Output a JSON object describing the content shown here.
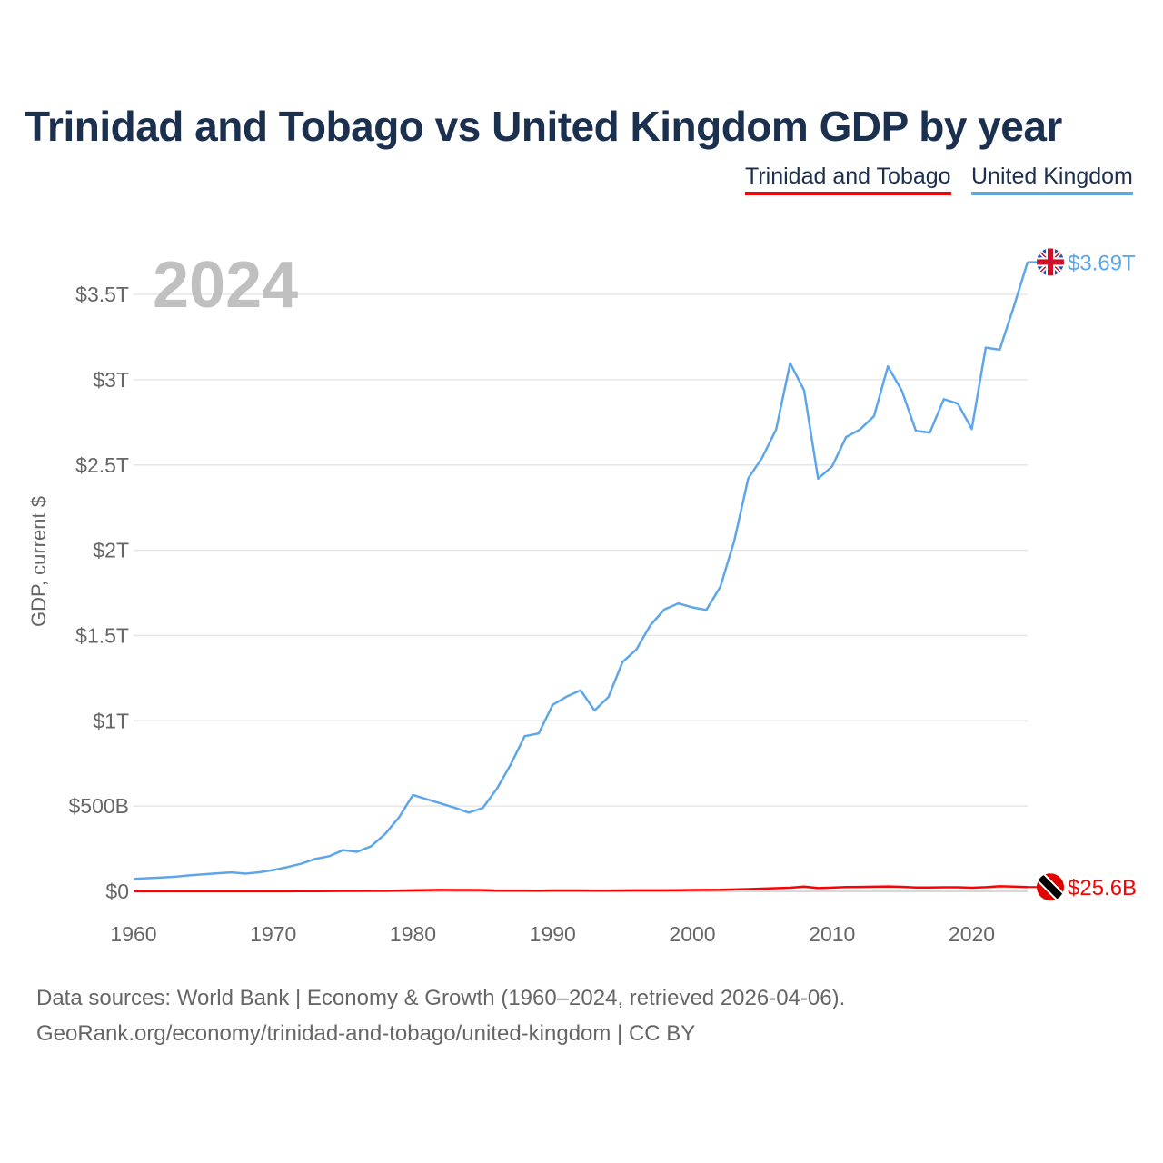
{
  "chart_data": {
    "type": "line",
    "title": "Trinidad and Tobago vs United Kingdom GDP by year",
    "ylabel": "GDP, current $",
    "xlabel": "",
    "year_label": "2024",
    "xlim": [
      1960,
      2024
    ],
    "ylim": [
      0,
      3.69
    ],
    "y_unit": "trillion USD",
    "x_ticks": [
      "1960",
      "1970",
      "1980",
      "1990",
      "2000",
      "2010",
      "2020"
    ],
    "y_ticks": [
      {
        "value": 0,
        "label": "$0"
      },
      {
        "value": 0.5,
        "label": "$500B"
      },
      {
        "value": 1,
        "label": "$1T"
      },
      {
        "value": 1.5,
        "label": "$1.5T"
      },
      {
        "value": 2,
        "label": "$2T"
      },
      {
        "value": 2.5,
        "label": "$2.5T"
      },
      {
        "value": 3,
        "label": "$3T"
      },
      {
        "value": 3.5,
        "label": "$3.5T"
      }
    ],
    "grid": true,
    "legend_position": "top-right",
    "x": [
      1960,
      1961,
      1962,
      1963,
      1964,
      1965,
      1966,
      1967,
      1968,
      1969,
      1970,
      1971,
      1972,
      1973,
      1974,
      1975,
      1976,
      1977,
      1978,
      1979,
      1980,
      1981,
      1982,
      1983,
      1984,
      1985,
      1986,
      1987,
      1988,
      1989,
      1990,
      1991,
      1992,
      1993,
      1994,
      1995,
      1996,
      1997,
      1998,
      1999,
      2000,
      2001,
      2002,
      2003,
      2004,
      2005,
      2006,
      2007,
      2008,
      2009,
      2010,
      2011,
      2012,
      2013,
      2014,
      2015,
      2016,
      2017,
      2018,
      2019,
      2020,
      2021,
      2022,
      2023,
      2024
    ],
    "series": [
      {
        "name": "Trinidad and Tobago",
        "color": "#ff0000",
        "end_label": "$25.6B",
        "values": [
          0.0005,
          0.0005,
          0.0006,
          0.0006,
          0.0007,
          0.0007,
          0.0007,
          0.0007,
          0.0007,
          0.0007,
          0.0008,
          0.0008,
          0.001,
          0.0012,
          0.0019,
          0.0024,
          0.0027,
          0.0032,
          0.0035,
          0.0044,
          0.0062,
          0.007,
          0.0084,
          0.008,
          0.0078,
          0.0074,
          0.0048,
          0.0047,
          0.0044,
          0.0043,
          0.0051,
          0.0053,
          0.0054,
          0.0044,
          0.0047,
          0.0053,
          0.0058,
          0.0059,
          0.0062,
          0.0068,
          0.0082,
          0.0088,
          0.009,
          0.0114,
          0.013,
          0.016,
          0.0185,
          0.0215,
          0.0279,
          0.0192,
          0.0222,
          0.0256,
          0.0258,
          0.0272,
          0.0289,
          0.0269,
          0.0228,
          0.0226,
          0.024,
          0.0243,
          0.0216,
          0.0249,
          0.0302,
          0.0279,
          0.0256
        ]
      },
      {
        "name": "United Kingdom",
        "color": "#5ea6ea",
        "end_label": "$3.69T",
        "values": [
          0.073,
          0.077,
          0.081,
          0.086,
          0.094,
          0.1,
          0.106,
          0.111,
          0.104,
          0.112,
          0.125,
          0.142,
          0.162,
          0.19,
          0.206,
          0.242,
          0.232,
          0.264,
          0.336,
          0.434,
          0.565,
          0.54,
          0.515,
          0.49,
          0.462,
          0.489,
          0.601,
          0.744,
          0.91,
          0.926,
          1.093,
          1.142,
          1.179,
          1.061,
          1.14,
          1.344,
          1.419,
          1.561,
          1.653,
          1.688,
          1.665,
          1.65,
          1.785,
          2.056,
          2.421,
          2.543,
          2.709,
          3.097,
          2.938,
          2.42,
          2.491,
          2.663,
          2.708,
          2.786,
          3.078,
          2.935,
          2.7,
          2.69,
          2.886,
          2.86,
          2.711,
          3.188,
          3.176,
          3.425,
          3.69
        ]
      }
    ]
  },
  "footer": {
    "sources": "Data sources: World Bank | Economy & Growth (1960–2024, retrieved 2026-04-06).",
    "attribution": "GeoRank.org/economy/trinidad-and-tobago/united-kingdom | CC BY"
  }
}
